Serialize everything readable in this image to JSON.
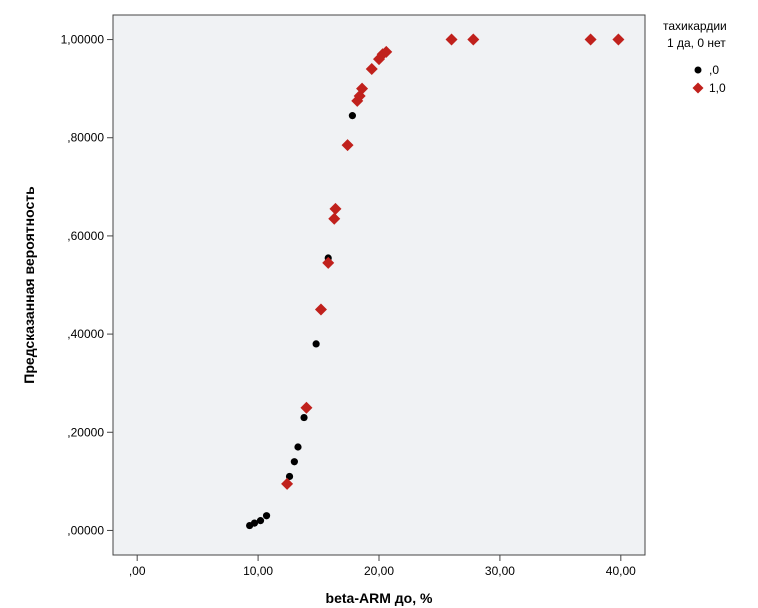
{
  "chart_data": {
    "type": "scatter",
    "xlabel": "beta-ARM до, %",
    "ylabel": "Предсказанная вероятность",
    "xlim": [
      -2,
      42
    ],
    "ylim": [
      -0.05,
      1.05
    ],
    "x_ticks": [
      {
        "value": 0,
        "label": ",00"
      },
      {
        "value": 10,
        "label": "10,00"
      },
      {
        "value": 20,
        "label": "20,00"
      },
      {
        "value": 30,
        "label": "30,00"
      },
      {
        "value": 40,
        "label": "40,00"
      }
    ],
    "y_ticks": [
      {
        "value": 0,
        "label": ",00000"
      },
      {
        "value": 0.2,
        "label": ",20000"
      },
      {
        "value": 0.4,
        "label": ",40000"
      },
      {
        "value": 0.6,
        "label": ",60000"
      },
      {
        "value": 0.8,
        "label": ",80000"
      },
      {
        "value": 1.0,
        "label": "1,00000"
      }
    ],
    "legend": {
      "title_lines": [
        "тахикардии",
        "1 да, 0 нет"
      ],
      "placement": "top-right-outside"
    },
    "grid": false,
    "plot_background": "#f0f2f4",
    "series": [
      {
        "name": ",0",
        "marker": "circle",
        "color": "#000000",
        "points": [
          {
            "x": 9.3,
            "y": 0.01
          },
          {
            "x": 9.7,
            "y": 0.015
          },
          {
            "x": 10.2,
            "y": 0.02
          },
          {
            "x": 10.7,
            "y": 0.03
          },
          {
            "x": 12.6,
            "y": 0.11
          },
          {
            "x": 13.0,
            "y": 0.14
          },
          {
            "x": 13.3,
            "y": 0.17
          },
          {
            "x": 13.8,
            "y": 0.23
          },
          {
            "x": 14.8,
            "y": 0.38
          },
          {
            "x": 15.8,
            "y": 0.555
          },
          {
            "x": 17.8,
            "y": 0.845
          }
        ]
      },
      {
        "name": "1,0",
        "marker": "diamond",
        "color": "#c0211c",
        "points": [
          {
            "x": 12.4,
            "y": 0.095
          },
          {
            "x": 14.0,
            "y": 0.25
          },
          {
            "x": 15.2,
            "y": 0.45
          },
          {
            "x": 15.8,
            "y": 0.545
          },
          {
            "x": 16.3,
            "y": 0.635
          },
          {
            "x": 16.4,
            "y": 0.655
          },
          {
            "x": 17.4,
            "y": 0.785
          },
          {
            "x": 18.2,
            "y": 0.875
          },
          {
            "x": 18.4,
            "y": 0.885
          },
          {
            "x": 18.6,
            "y": 0.9
          },
          {
            "x": 19.4,
            "y": 0.94
          },
          {
            "x": 20.0,
            "y": 0.96
          },
          {
            "x": 20.3,
            "y": 0.97
          },
          {
            "x": 20.6,
            "y": 0.975
          },
          {
            "x": 26.0,
            "y": 1.0
          },
          {
            "x": 27.8,
            "y": 1.0
          },
          {
            "x": 37.5,
            "y": 1.0
          },
          {
            "x": 39.8,
            "y": 1.0
          }
        ]
      }
    ]
  }
}
